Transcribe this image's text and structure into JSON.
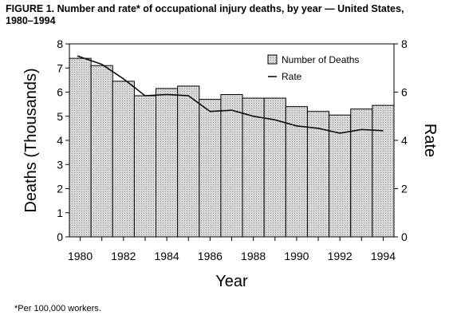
{
  "figure": {
    "title_line1": "FIGURE 1. Number and rate* of occupational injury deaths, by year — United States,",
    "title_line2": "1980–1994",
    "footnote": "*Per 100,000 workers."
  },
  "colors": {
    "bar_fill": "#d9d9d9",
    "bar_stroke": "#000000",
    "line": "#000000",
    "axis": "#000000"
  },
  "chart_data": {
    "type": "bar",
    "title": "",
    "xlabel": "Year",
    "ylabel": "Deaths (Thousands)",
    "ylabel_right": "Rate",
    "categories": [
      "1980",
      "1981",
      "1982",
      "1983",
      "1984",
      "1985",
      "1986",
      "1987",
      "1988",
      "1989",
      "1990",
      "1991",
      "1992",
      "1993",
      "1994"
    ],
    "x_tick_labels": [
      "1980",
      "1982",
      "1984",
      "1986",
      "1988",
      "1990",
      "1992",
      "1994"
    ],
    "ylim": [
      0,
      8
    ],
    "y_ticks": [
      "0",
      "1",
      "2",
      "3",
      "4",
      "5",
      "6",
      "7",
      "8"
    ],
    "ylim_right": [
      0,
      8
    ],
    "y_ticks_right": [
      "0",
      "2",
      "4",
      "6",
      "8"
    ],
    "grid": false,
    "legend_position": "top-right",
    "series": [
      {
        "name": "Number of Deaths",
        "type": "bar",
        "axis": "left",
        "values": [
          7.4,
          7.1,
          6.45,
          5.85,
          6.15,
          6.25,
          5.7,
          5.9,
          5.75,
          5.75,
          5.4,
          5.2,
          5.05,
          5.3,
          5.45
        ]
      },
      {
        "name": "Rate",
        "type": "line",
        "axis": "right",
        "values": [
          7.5,
          7.15,
          6.55,
          5.85,
          5.9,
          5.85,
          5.2,
          5.25,
          5.0,
          4.85,
          4.6,
          4.5,
          4.3,
          4.45,
          4.4
        ]
      }
    ]
  }
}
